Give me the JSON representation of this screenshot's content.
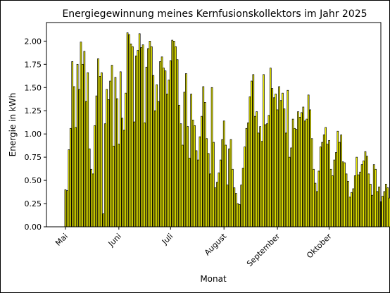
{
  "chart_data": {
    "type": "bar",
    "title": "Energiegewinnung meines Kernfusionskollektors im Jahr 2025",
    "xlabel": "Monat",
    "ylabel": "Energie in kWh",
    "ylim": [
      0,
      2.2
    ],
    "yticks": [
      "0.00",
      "0.25",
      "0.50",
      "0.75",
      "1.00",
      "1.25",
      "1.50",
      "1.75",
      "2.00"
    ],
    "x_tick_labels": [
      {
        "label": "Mai",
        "date": "2025-05-01"
      },
      {
        "label": "Juni",
        "date": "2025-06-01"
      },
      {
        "label": "Juli",
        "date": "2025-07-01"
      },
      {
        "label": "August",
        "date": "2025-08-01"
      },
      {
        "label": "September",
        "date": "2025-09-01"
      },
      {
        "label": "Oktober",
        "date": "2025-10-01"
      }
    ],
    "x_range": [
      "2025-04-20",
      "2025-10-31"
    ],
    "bar_color": "#ffff00",
    "edge_color": "#000000",
    "grid": false,
    "series": [
      {
        "start_date": "2025-05-01",
        "values": [
          0.4,
          0.39,
          0.83,
          1.06,
          1.78,
          1.51,
          1.07,
          1.75,
          1.48,
          1.99,
          1.75,
          1.89,
          1.35,
          1.66,
          0.84,
          0.62,
          0.57,
          1.09,
          1.41,
          1.81,
          1.62,
          1.66,
          0.14,
          1.11,
          1.48,
          1.37,
          1.57,
          1.74,
          0.87,
          1.61,
          1.38,
          0.89,
          1.67,
          1.17,
          1.04,
          1.44,
          2.09,
          2.07,
          1.97,
          1.94,
          1.13,
          1.84,
          1.9,
          2.08,
          1.93,
          1.96,
          1.12,
          1.72,
          1.92,
          2.0,
          1.94,
          1.63,
          1.25,
          1.53,
          1.35,
          1.78,
          1.83,
          1.71,
          1.68,
          1.43,
          1.58,
          1.79,
          2.01,
          2.0,
          1.94,
          1.8,
          1.31,
          1.11,
          0.88,
          1.45,
          1.65,
          1.08,
          0.74,
          1.43,
          1.15,
          1.09,
          0.82,
          0.72,
          0.97,
          1.19,
          1.51,
          1.34,
          0.95,
          0.79,
          0.57,
          1.5,
          0.91,
          0.42,
          0.48,
          0.58,
          0.72,
          0.94,
          1.14,
          0.88,
          0.45,
          0.84,
          0.94,
          0.62,
          0.42,
          0.36,
          0.25,
          0.24,
          0.45,
          0.63,
          0.86,
          1.06,
          1.12,
          1.4,
          1.57,
          1.64,
          1.19,
          1.24,
          1.01,
          1.08,
          0.92,
          1.64,
          1.1,
          1.11,
          1.2,
          1.71,
          1.49,
          1.39,
          1.43,
          1.26,
          1.51,
          1.36,
          1.44,
          1.27,
          1.01,
          1.47,
          0.75,
          0.85,
          1.16,
          1.06,
          1.05,
          1.24,
          1.18,
          1.23,
          1.29,
          1.14,
          1.16,
          1.42,
          1.26,
          0.95,
          0.62,
          0.47,
          0.38,
          0.6,
          0.86,
          0.91,
          0.99,
          1.07,
          0.89,
          0.93,
          0.62,
          0.55,
          0.72,
          0.8,
          1.03,
          0.91,
          0.99,
          0.7,
          0.69,
          0.57,
          0.49,
          0.32,
          0.37,
          0.41,
          0.55,
          0.75,
          0.56,
          0.59,
          0.67,
          0.71,
          0.81,
          0.76,
          0.57,
          0.46,
          0.34,
          0.67,
          0.62,
          0.38,
          0.43,
          0.27,
          0.33,
          0.38,
          0.46,
          0.42,
          0.31,
          0.26,
          0.21,
          0.26,
          0.12,
          0.31,
          0.4,
          0.45,
          0.37,
          0.3,
          0.16,
          0.14,
          0.49,
          0.4
        ]
      }
    ]
  }
}
